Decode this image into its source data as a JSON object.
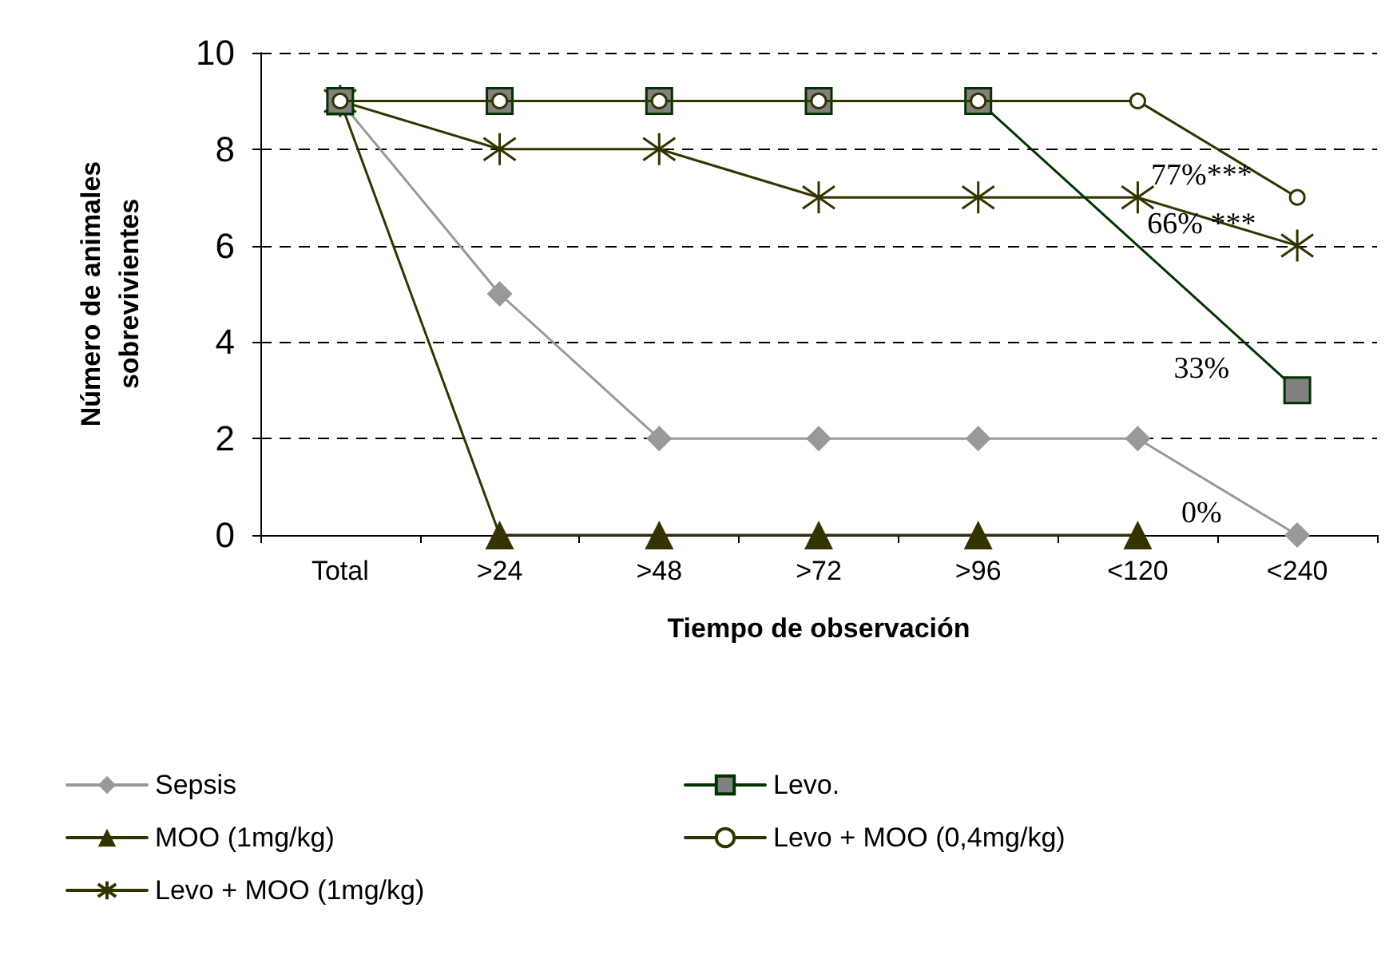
{
  "chart_data": {
    "type": "line",
    "xlabel": "Tiempo de observación",
    "ylabel": "Número de animales\nsobrevivientes",
    "categories": [
      "Total",
      ">24",
      ">48",
      ">72",
      ">96",
      "<120",
      "<240"
    ],
    "series": [
      {
        "name": "Sepsis",
        "color": "#999999",
        "marker": "diamond",
        "values": [
          9,
          5,
          2,
          2,
          2,
          2,
          0
        ]
      },
      {
        "name": "MOO (1mg/kg)",
        "color": "#333300",
        "marker": "triangle",
        "values": [
          9,
          0,
          0,
          0,
          0,
          0,
          null
        ]
      },
      {
        "name": "Levo + MOO (1mg/kg)",
        "color": "#333300",
        "marker": "cross",
        "values": [
          9,
          8,
          8,
          7,
          7,
          7,
          6
        ]
      },
      {
        "name": "Levo.",
        "color": "#003300",
        "marker": "square",
        "values": [
          9,
          9,
          9,
          9,
          9,
          null,
          3
        ]
      },
      {
        "name": "Levo + MOO (0,4mg/kg)",
        "color": "#333300",
        "marker": "circle",
        "values": [
          9,
          9,
          9,
          9,
          9,
          9,
          7
        ]
      }
    ],
    "ylim": [
      0,
      10
    ],
    "yticks": [
      0,
      2,
      4,
      6,
      8,
      10
    ],
    "grid": "y",
    "legend": "bottom",
    "annotations": [
      {
        "text": "77%***",
        "x": "<240",
        "y": 7
      },
      {
        "text": "66% ***",
        "x": "<240",
        "y": 6
      },
      {
        "text": "33%",
        "x": "<240",
        "y": 3
      },
      {
        "text": "0%",
        "x": "<240",
        "y": 0
      }
    ]
  }
}
